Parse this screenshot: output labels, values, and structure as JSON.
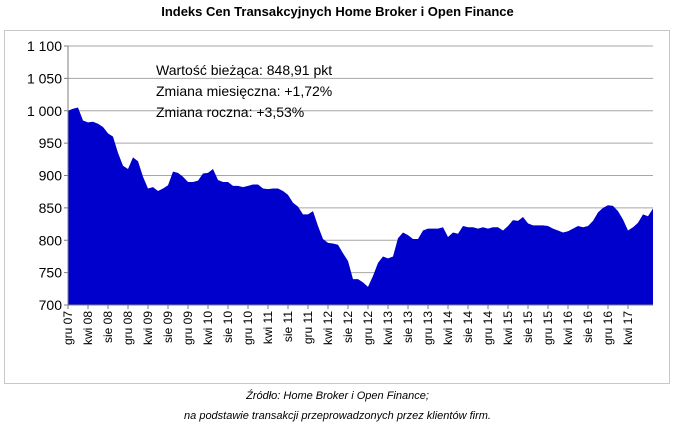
{
  "title": "Indeks Cen Transakcyjnych Home Broker i Open Finance",
  "annotations": {
    "line1": "Wartość bieżąca: 848,91 pkt",
    "line2": "Zmiana miesięczna: +1,72%",
    "line3": "Zmiana roczna: +3,53%"
  },
  "source": {
    "line1": "Źródło: Home Broker i Open Finance;",
    "line2": "na podstawie transakcji przeprowadzonych przez klientów firm."
  },
  "colors": {
    "fill": "#0000cc",
    "grid": "#a6a6a6"
  },
  "chart_data": {
    "type": "area",
    "ylim": [
      700,
      1100
    ],
    "yticks": [
      700,
      750,
      800,
      850,
      900,
      950,
      1000,
      1050,
      1100
    ],
    "ytick_labels": [
      "700",
      "750",
      "800",
      "850",
      "900",
      "950",
      "1 000",
      "1 050",
      "1 100"
    ],
    "grid": true,
    "xtick_labels": [
      "gru 07",
      "kwi 08",
      "sie 08",
      "gru 08",
      "kwi 09",
      "sie 09",
      "gru 09",
      "kwi 10",
      "sie 10",
      "gru 10",
      "kwi 11",
      "sie 11",
      "gru 11",
      "kwi 12",
      "sie 12",
      "gru 12",
      "kwi 13",
      "sie 13",
      "gru 13",
      "kwi 14",
      "sie 14",
      "gru 14",
      "kwi 15",
      "sie 15",
      "gru 15",
      "kwi 16",
      "sie 16",
      "gru 16",
      "kwi 17"
    ],
    "months_per_tick": 4,
    "values": [
      1000,
      1003,
      1005,
      985,
      982,
      983,
      980,
      975,
      965,
      960,
      935,
      915,
      910,
      928,
      922,
      898,
      880,
      882,
      876,
      880,
      885,
      906,
      904,
      898,
      890,
      890,
      892,
      903,
      904,
      910,
      893,
      890,
      890,
      884,
      884,
      882,
      884,
      886,
      886,
      880,
      879,
      880,
      880,
      876,
      870,
      858,
      852,
      840,
      840,
      845,
      822,
      802,
      796,
      795,
      793,
      780,
      768,
      740,
      740,
      735,
      728,
      745,
      765,
      775,
      772,
      775,
      803,
      812,
      808,
      802,
      802,
      815,
      818,
      818,
      818,
      820,
      805,
      812,
      810,
      822,
      820,
      820,
      818,
      820,
      818,
      820,
      820,
      815,
      822,
      831,
      830,
      836,
      826,
      823,
      823,
      823,
      822,
      818,
      815,
      812,
      814,
      818,
      822,
      820,
      822,
      830,
      843,
      850,
      854,
      853,
      845,
      832,
      815,
      820,
      827,
      840,
      837,
      849
    ]
  }
}
